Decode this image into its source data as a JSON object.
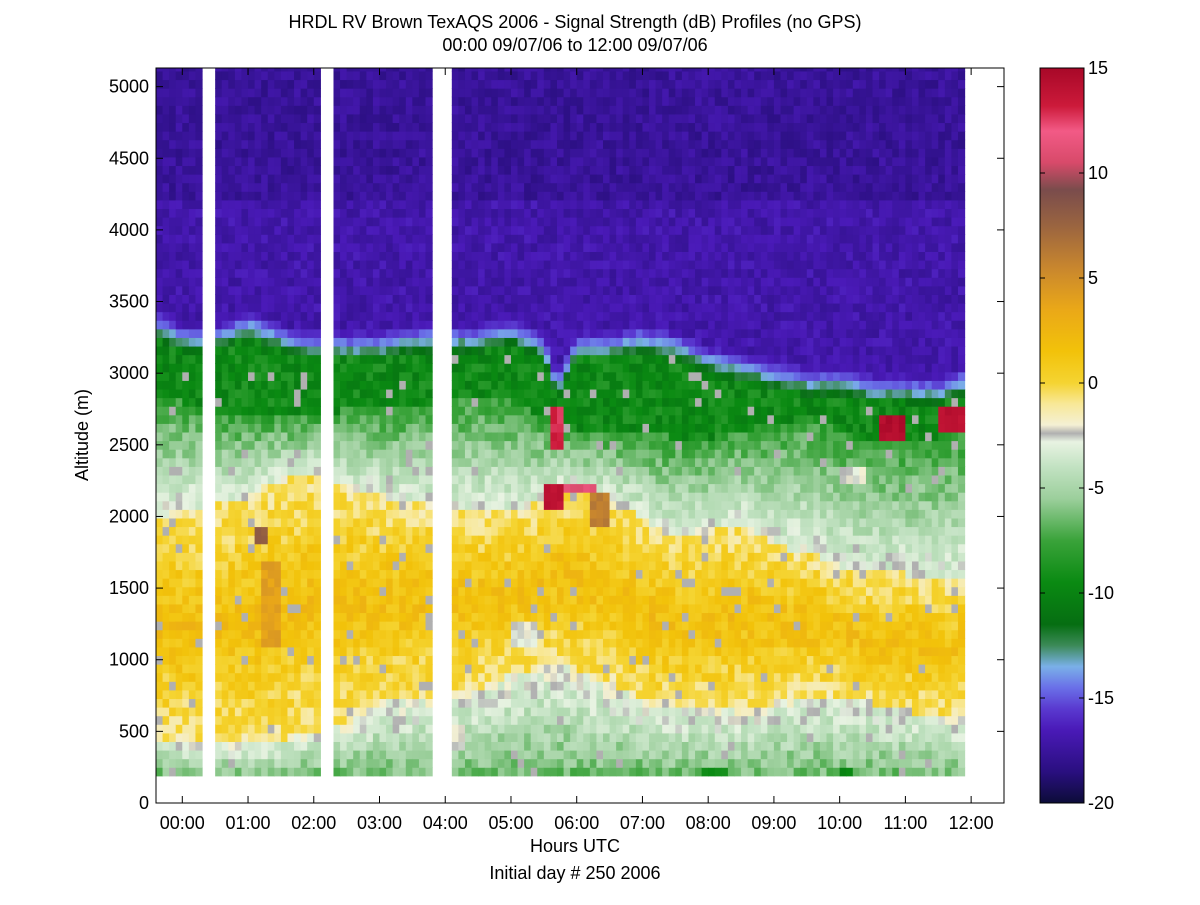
{
  "chart_data": {
    "type": "heatmap",
    "title": "HRDL RV Brown TexAQS 2006 - Signal Strength (dB) Profiles (no GPS)",
    "subtitle": "00:00 09/07/06 to 12:00 09/07/06",
    "xlabel": "Hours UTC",
    "xlabel2": "Initial day # 250  2006",
    "ylabel": "Altitude (m)",
    "xlim": [
      -0.4,
      12.5
    ],
    "ylim": [
      0,
      5130
    ],
    "x_ticks": [
      0,
      1,
      2,
      3,
      4,
      5,
      6,
      7,
      8,
      9,
      10,
      11,
      12
    ],
    "x_tick_labels": [
      "00:00",
      "01:00",
      "02:00",
      "03:00",
      "04:00",
      "05:00",
      "06:00",
      "07:00",
      "08:00",
      "09:00",
      "10:00",
      "11:00",
      "12:00"
    ],
    "y_ticks": [
      0,
      500,
      1000,
      1500,
      2000,
      2500,
      3000,
      3500,
      4000,
      4500,
      5000
    ],
    "y_tick_labels": [
      "0",
      "500",
      "1000",
      "1500",
      "2000",
      "2500",
      "3000",
      "3500",
      "4000",
      "4500",
      "5000"
    ],
    "colorbar": {
      "min": -20,
      "max": 15,
      "ticks": [
        15,
        10,
        5,
        0,
        -5,
        -10,
        -15,
        -20
      ],
      "tick_labels": [
        "15",
        "10",
        "5",
        "0",
        "-5",
        "-10",
        "-15",
        "-20"
      ],
      "colormap": [
        {
          "v": -20,
          "color": "#0c0c38"
        },
        {
          "v": -18.5,
          "color": "#2a0f80"
        },
        {
          "v": -16.5,
          "color": "#4a1ab8"
        },
        {
          "v": -15.5,
          "color": "#5a3ad0"
        },
        {
          "v": -14.5,
          "color": "#6a70e8"
        },
        {
          "v": -13.5,
          "color": "#7ab0e8"
        },
        {
          "v": -12.5,
          "color": "#3c8a58"
        },
        {
          "v": -11.5,
          "color": "#066e12"
        },
        {
          "v": -9.5,
          "color": "#0a8a12"
        },
        {
          "v": -7.5,
          "color": "#3aa33a"
        },
        {
          "v": -5.5,
          "color": "#9ccf9c"
        },
        {
          "v": -4,
          "color": "#c2e2c2"
        },
        {
          "v": -2.8,
          "color": "#e8f3e2"
        },
        {
          "v": -2.4,
          "color": "#b0b0b0"
        },
        {
          "v": -2.0,
          "color": "#f4f0d4"
        },
        {
          "v": -1,
          "color": "#f8e898"
        },
        {
          "v": 0,
          "color": "#f5d432"
        },
        {
          "v": 1.5,
          "color": "#f2c20a"
        },
        {
          "v": 3.5,
          "color": "#eaa818"
        },
        {
          "v": 5.5,
          "color": "#c8862e"
        },
        {
          "v": 7.5,
          "color": "#9a6440"
        },
        {
          "v": 9.2,
          "color": "#7a4c4c"
        },
        {
          "v": 10.5,
          "color": "#d84a6a"
        },
        {
          "v": 12,
          "color": "#f25a86"
        },
        {
          "v": 13.2,
          "color": "#cc1a3a"
        },
        {
          "v": 15,
          "color": "#a80828"
        }
      ]
    },
    "data_range": {
      "x_start": -0.4,
      "x_end": 11.85,
      "y_bottom": 190,
      "y_top": 5130,
      "profile_width_hours": 0.1
    },
    "gaps_hours": [
      [
        0.3,
        0.55
      ],
      [
        2.1,
        2.3
      ],
      [
        3.8,
        4.1
      ],
      [
        11.85,
        12.45
      ]
    ],
    "boundaries": {
      "times": [
        -0.4,
        0,
        0.5,
        1,
        1.5,
        2,
        2.5,
        3,
        3.5,
        4,
        4.5,
        5,
        5.5,
        5.7,
        6,
        6.5,
        7,
        7.5,
        8,
        8.5,
        9,
        9.5,
        10,
        10.5,
        11,
        11.5,
        11.85
      ],
      "cloud_top_m": [
        3250,
        3150,
        3150,
        3250,
        3150,
        3100,
        3100,
        3100,
        3150,
        3150,
        3150,
        3200,
        3100,
        2800,
        3100,
        3100,
        3150,
        3100,
        3000,
        2950,
        2900,
        2850,
        2850,
        2800,
        2800,
        2780,
        2850
      ],
      "green_bottom_m": [
        2850,
        2800,
        2700,
        2700,
        2700,
        2700,
        2750,
        2750,
        2750,
        2800,
        2850,
        2800,
        2700,
        2600,
        2600,
        2600,
        2600,
        2550,
        2550,
        2600,
        2650,
        2700,
        2600,
        2500,
        2500,
        2550,
        2600
      ],
      "yellow_top_m": [
        2000,
        2050,
        2100,
        2150,
        2250,
        2300,
        2200,
        2150,
        2100,
        2050,
        2050,
        2050,
        2100,
        2200,
        2200,
        2100,
        2000,
        1850,
        1900,
        1950,
        1800,
        1750,
        1650,
        1600,
        1600,
        1550,
        1550
      ],
      "yellow_bottom_m": [
        450,
        450,
        400,
        400,
        450,
        500,
        550,
        700,
        700,
        750,
        800,
        900,
        950,
        1000,
        900,
        850,
        700,
        650,
        650,
        650,
        700,
        750,
        750,
        700,
        650,
        600,
        600
      ]
    },
    "features": [
      {
        "t0": 5.5,
        "t1": 5.8,
        "z0": 2050,
        "z1": 2250,
        "value": 14
      },
      {
        "t0": 5.8,
        "t1": 6.3,
        "z0": 2150,
        "z1": 2230,
        "value": 11
      },
      {
        "t0": 5.55,
        "t1": 5.75,
        "z0": 2450,
        "z1": 2750,
        "value": 13
      },
      {
        "t0": 10.6,
        "t1": 11.0,
        "z0": 2520,
        "z1": 2700,
        "value": 14.5
      },
      {
        "t0": 11.5,
        "t1": 11.85,
        "z0": 2600,
        "z1": 2800,
        "value": 14
      },
      {
        "t0": 1.15,
        "t1": 1.3,
        "z0": 1800,
        "z1": 1950,
        "value": 8
      },
      {
        "t0": 1.25,
        "t1": 1.55,
        "z0": 1100,
        "z1": 1700,
        "value": 4
      },
      {
        "t0": 6.2,
        "t1": 6.5,
        "z0": 1950,
        "z1": 2200,
        "value": 6
      },
      {
        "t0": 5.0,
        "t1": 5.4,
        "z0": 1100,
        "z1": 1300,
        "value": -2.4
      },
      {
        "t0": 10.0,
        "t1": 10.4,
        "z0": 2250,
        "z1": 2350,
        "value": -2.4
      },
      {
        "t0": 4.0,
        "t1": 4.3,
        "z0": 400,
        "z1": 550,
        "value": -2.4
      },
      {
        "t0": 7.9,
        "t1": 8.3,
        "z0": 190,
        "z1": 260,
        "value": -9
      },
      {
        "t0": 10.0,
        "t1": 10.2,
        "z0": 190,
        "z1": 280,
        "value": -10
      }
    ]
  }
}
